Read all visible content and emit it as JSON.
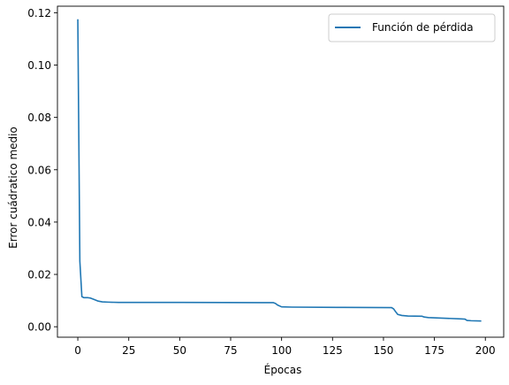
{
  "chart_data": {
    "type": "line",
    "xlabel": "Épocas",
    "ylabel": "Error cuádratico medio",
    "xlim": [
      -10,
      209
    ],
    "ylim": [
      -0.004,
      0.1225
    ],
    "xticks": [
      0,
      25,
      50,
      75,
      100,
      125,
      150,
      175,
      200
    ],
    "yticks": [
      0.0,
      0.02,
      0.04,
      0.06,
      0.08,
      0.1,
      0.12
    ],
    "ytick_labels": [
      "0.00",
      "0.02",
      "0.04",
      "0.06",
      "0.08",
      "0.10",
      "0.12"
    ],
    "grid": false,
    "legend_position": "top-right",
    "series": [
      {
        "name": "Función de pérdida",
        "color": "#1f77b4",
        "points": [
          [
            0,
            0.1175
          ],
          [
            1,
            0.025
          ],
          [
            2,
            0.0115
          ],
          [
            3,
            0.0111
          ],
          [
            5,
            0.0111
          ],
          [
            6,
            0.011
          ],
          [
            8,
            0.0104
          ],
          [
            10,
            0.0098
          ],
          [
            12,
            0.0095
          ],
          [
            15,
            0.0094
          ],
          [
            20,
            0.0093
          ],
          [
            50,
            0.0093
          ],
          [
            90,
            0.0092
          ],
          [
            96,
            0.0092
          ],
          [
            97,
            0.0089
          ],
          [
            98,
            0.0083
          ],
          [
            100,
            0.0076
          ],
          [
            105,
            0.0075
          ],
          [
            130,
            0.0074
          ],
          [
            154,
            0.0073
          ],
          [
            155,
            0.0068
          ],
          [
            156,
            0.0057
          ],
          [
            157,
            0.0047
          ],
          [
            159,
            0.0043
          ],
          [
            162,
            0.0041
          ],
          [
            169,
            0.004
          ],
          [
            170,
            0.0037
          ],
          [
            172,
            0.0035
          ],
          [
            188,
            0.003
          ],
          [
            190,
            0.0029
          ],
          [
            191,
            0.0024
          ],
          [
            193,
            0.0023
          ],
          [
            198,
            0.0022
          ]
        ]
      }
    ]
  }
}
